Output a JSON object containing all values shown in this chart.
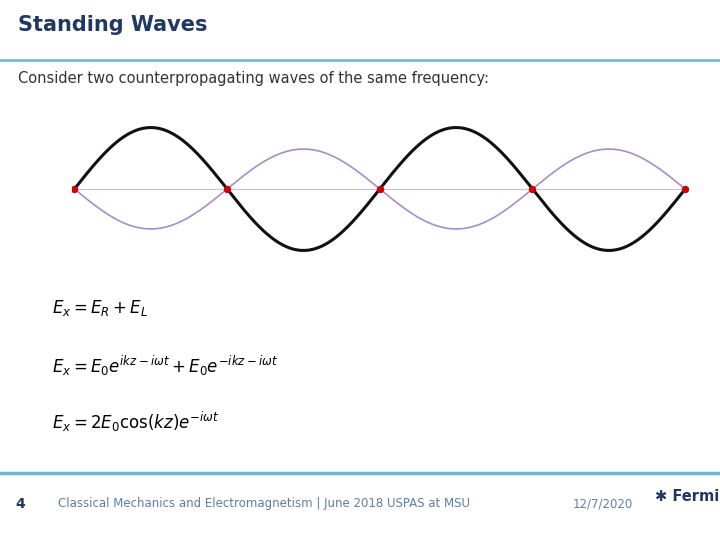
{
  "title": "Standing Waves",
  "subtitle": "Consider two counterpropagating waves of the same frequency:",
  "title_color": "#1F3864",
  "subtitle_color": "#333333",
  "bg_color": "#FFFFFF",
  "header_line_color": "#6BB5D6",
  "footer_line_color": "#6BB5D6",
  "black_wave_color": "#111111",
  "purple_wave_color": "#A080C0",
  "dot_color": "#CC0000",
  "black_wave_lw": 2.2,
  "purple_wave_lw": 1.2,
  "eq1": "$E_x = E_R + E_L$",
  "eq2": "$E_x = E_0 e^{ikz-i\\omega t} + E_0 e^{-ikz-i\\omega t}$",
  "eq3": "$E_x = 2E_0\\cos(kz)e^{-i\\omega t}$",
  "footer_text": "Classical Mechanics and Electromagnetism | June 2018 USPAS at MSU",
  "footer_page": "4",
  "footer_date": "12/7/2020",
  "fermilab_color": "#1F3864",
  "footer_color": "#5B7FA6"
}
